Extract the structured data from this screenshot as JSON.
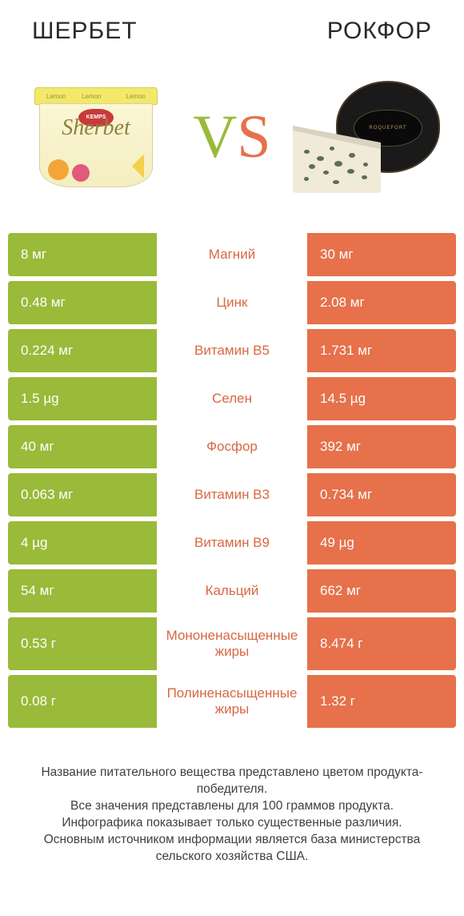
{
  "header": {
    "left_title": "Шербет",
    "right_title": "Рокфор",
    "vs_v": "V",
    "vs_s": "S"
  },
  "products": {
    "sherbet": {
      "brand": "KEMPS",
      "label": "Sherbet",
      "lid_text": "Lemon"
    },
    "roquefort": {
      "wheel_label": "ROQUEFORT"
    }
  },
  "colors": {
    "left": "#9aba3a",
    "right": "#e6714b",
    "bg": "#ffffff"
  },
  "table": {
    "rows": [
      {
        "left": "8 мг",
        "mid": "Магний",
        "right": "30 мг",
        "winner": "right",
        "tall": false
      },
      {
        "left": "0.48 мг",
        "mid": "Цинк",
        "right": "2.08 мг",
        "winner": "right",
        "tall": false
      },
      {
        "left": "0.224 мг",
        "mid": "Витамин B5",
        "right": "1.731 мг",
        "winner": "right",
        "tall": false
      },
      {
        "left": "1.5 µg",
        "mid": "Селен",
        "right": "14.5 µg",
        "winner": "right",
        "tall": false
      },
      {
        "left": "40 мг",
        "mid": "Фосфор",
        "right": "392 мг",
        "winner": "right",
        "tall": false
      },
      {
        "left": "0.063 мг",
        "mid": "Витамин B3",
        "right": "0.734 мг",
        "winner": "right",
        "tall": false
      },
      {
        "left": "4 µg",
        "mid": "Витамин B9",
        "right": "49 µg",
        "winner": "right",
        "tall": false
      },
      {
        "left": "54 мг",
        "mid": "Кальций",
        "right": "662 мг",
        "winner": "right",
        "tall": false
      },
      {
        "left": "0.53 г",
        "mid": "Мононенасыщенные жиры",
        "right": "8.474 г",
        "winner": "right",
        "tall": true
      },
      {
        "left": "0.08 г",
        "mid": "Полиненасыщенные жиры",
        "right": "1.32 г",
        "winner": "right",
        "tall": true
      }
    ]
  },
  "footer": {
    "line1": "Название питательного вещества представлено цветом продукта-победителя.",
    "line2": "Все значения представлены для 100 граммов продукта.",
    "line3": "Инфографика показывает только существенные различия.",
    "line4": "Основным источником информации является база министерства сельского хозяйства США."
  }
}
